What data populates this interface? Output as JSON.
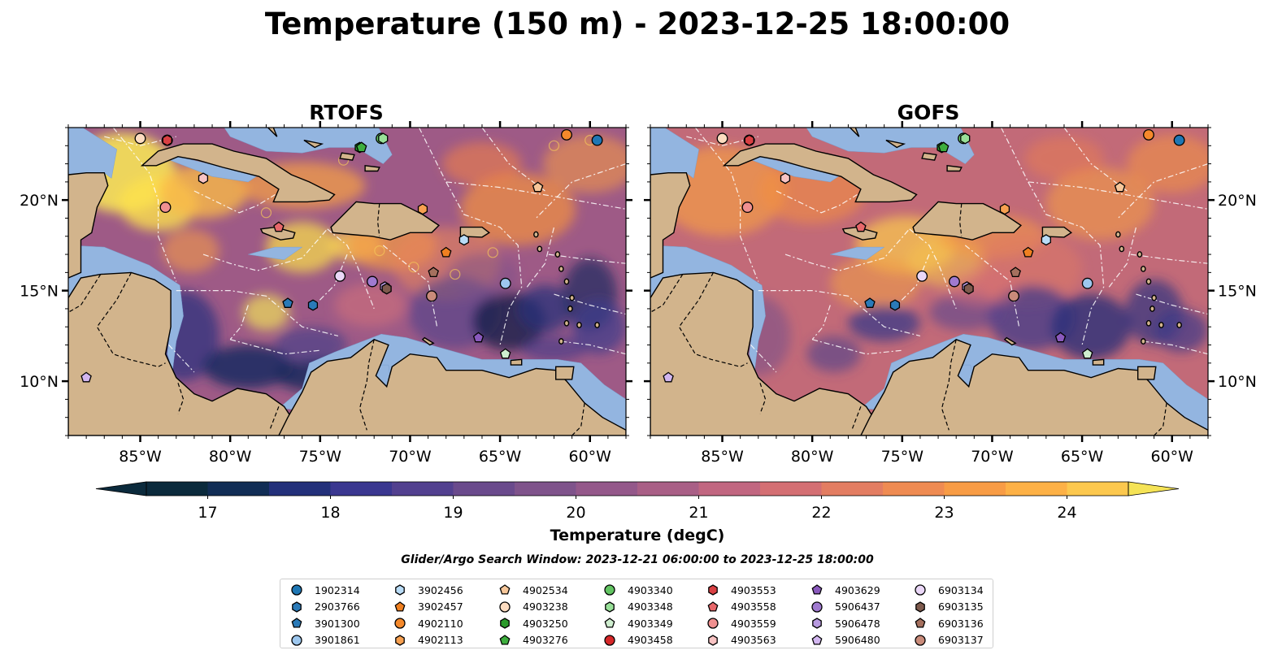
{
  "figure": {
    "title": "Temperature (150 m) - 2023-12-25 18:00:00",
    "search_window": "Glider/Argo Search Window: 2023-12-21 06:00:00 to 2023-12-25 18:00:00"
  },
  "panels": [
    {
      "title": "RTOFS",
      "y_labels_side": "left"
    },
    {
      "title": "GOFS",
      "y_labels_side": "right"
    }
  ],
  "map": {
    "lon_range": [
      -89,
      -58
    ],
    "lat_range": [
      7,
      24
    ],
    "x_ticks": [
      {
        "lon": -85,
        "label": "85°W"
      },
      {
        "lon": -80,
        "label": "80°W"
      },
      {
        "lon": -75,
        "label": "75°W"
      },
      {
        "lon": -70,
        "label": "70°W"
      },
      {
        "lon": -65,
        "label": "65°W"
      },
      {
        "lon": -60,
        "label": "60°W"
      }
    ],
    "y_ticks": [
      {
        "lat": 10,
        "label": "10°N"
      },
      {
        "lat": 15,
        "label": "15°N"
      },
      {
        "lat": 20,
        "label": "20°N"
      }
    ],
    "colors": {
      "land": "#d2b48c",
      "shelf": "#93b5e0",
      "deep_cold": "#06202f",
      "eez_lines": "#ffffff",
      "borders": "#000000"
    }
  },
  "colorbar": {
    "label": "Temperature (degC)",
    "min": 16.5,
    "max": 24.5,
    "ticks": [
      {
        "value": 17,
        "label": "17"
      },
      {
        "value": 18,
        "label": "18"
      },
      {
        "value": 19,
        "label": "19"
      },
      {
        "value": 20,
        "label": "20"
      },
      {
        "value": 21,
        "label": "21"
      },
      {
        "value": 22,
        "label": "22"
      },
      {
        "value": 23,
        "label": "23"
      },
      {
        "value": 24,
        "label": "24"
      }
    ],
    "colors": [
      "#0b2a3c",
      "#112d55",
      "#23307a",
      "#3a3790",
      "#52408f",
      "#6a4a8c",
      "#7f538b",
      "#94588a",
      "#a95f86",
      "#c16680",
      "#d46f73",
      "#e37d62",
      "#ef8b52",
      "#f89c45",
      "#fdb146",
      "#fcc84e",
      "#f5e356"
    ]
  },
  "floats": [
    {
      "id": "1902314",
      "marker": "circle",
      "color": "#1f77b4",
      "lon": -59.6,
      "lat": 23.3
    },
    {
      "id": "2903766",
      "marker": "hexagon",
      "color": "#2a7ab8",
      "lon": -75.4,
      "lat": 14.2
    },
    {
      "id": "3901300",
      "marker": "pentagon",
      "color": "#2a7ab8",
      "lon": -76.8,
      "lat": 14.3
    },
    {
      "id": "3901861",
      "marker": "circle",
      "color": "#9dc7ee",
      "lon": -64.7,
      "lat": 15.4
    },
    {
      "id": "3902456",
      "marker": "hexagon",
      "color": "#b9dcf7",
      "lon": -67.0,
      "lat": 17.8
    },
    {
      "id": "3902457",
      "marker": "pentagon",
      "color": "#f08020",
      "lon": -68.0,
      "lat": 17.1
    },
    {
      "id": "4902110",
      "marker": "circle",
      "color": "#f5892b",
      "lon": -61.3,
      "lat": 23.6
    },
    {
      "id": "4902113",
      "marker": "hexagon",
      "color": "#f7a050",
      "lon": -69.3,
      "lat": 19.5
    },
    {
      "id": "4902534",
      "marker": "pentagon",
      "color": "#f7c79a",
      "lon": -62.9,
      "lat": 20.7
    },
    {
      "id": "4903238",
      "marker": "circle",
      "color": "#fddcc0",
      "lon": -85.0,
      "lat": 23.4
    },
    {
      "id": "4903250",
      "marker": "hexagon",
      "color": "#2a9a2a",
      "lon": -72.8,
      "lat": 22.9
    },
    {
      "id": "4903276",
      "marker": "pentagon",
      "color": "#3eae3e",
      "lon": -72.7,
      "lat": 22.9
    },
    {
      "id": "4903340",
      "marker": "circle",
      "color": "#62c462",
      "lon": -71.6,
      "lat": 23.4
    },
    {
      "id": "4903348",
      "marker": "hexagon",
      "color": "#98e098",
      "lon": -71.5,
      "lat": 23.4
    },
    {
      "id": "4903349",
      "marker": "pentagon",
      "color": "#cfeecf",
      "lon": -64.7,
      "lat": 11.5
    },
    {
      "id": "4903458",
      "marker": "circle",
      "color": "#d62728",
      "lon": -83.5,
      "lat": 23.3
    },
    {
      "id": "4903553",
      "marker": "hexagon",
      "color": "#d94043",
      "lon": -83.5,
      "lat": 23.3
    },
    {
      "id": "4903558",
      "marker": "pentagon",
      "color": "#e8676a",
      "lon": -77.3,
      "lat": 18.5
    },
    {
      "id": "4903559",
      "marker": "circle",
      "color": "#f09090",
      "lon": -83.6,
      "lat": 19.6
    },
    {
      "id": "4903563",
      "marker": "hexagon",
      "color": "#f8c3c3",
      "lon": -81.5,
      "lat": 21.2
    },
    {
      "id": "4903629",
      "marker": "pentagon",
      "color": "#8a59bd",
      "lon": -66.2,
      "lat": 12.4
    },
    {
      "id": "5906437",
      "marker": "circle",
      "color": "#a07ad0",
      "lon": -72.1,
      "lat": 15.5
    },
    {
      "id": "5906478",
      "marker": "hexagon",
      "color": "#b89ae0",
      "lon": -71.4,
      "lat": 15.2
    },
    {
      "id": "5906480",
      "marker": "pentagon",
      "color": "#d2b6f0",
      "lon": -88.0,
      "lat": 10.2
    },
    {
      "id": "6903134",
      "marker": "circle",
      "color": "#ead7f7",
      "lon": -73.9,
      "lat": 15.8
    },
    {
      "id": "6903135",
      "marker": "hexagon",
      "color": "#7e5a4d",
      "lon": -71.3,
      "lat": 15.1
    },
    {
      "id": "6903136",
      "marker": "pentagon",
      "color": "#a5705e",
      "lon": -68.7,
      "lat": 16.0
    },
    {
      "id": "6903137",
      "marker": "circle",
      "color": "#c98b7a",
      "lon": -68.8,
      "lat": 14.7
    }
  ]
}
